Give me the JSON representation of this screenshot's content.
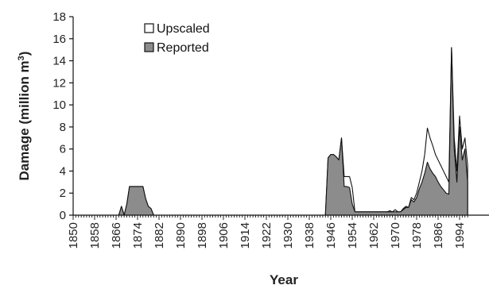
{
  "chart_data": {
    "type": "area",
    "xlabel": "Year",
    "ylabel": "Damage (million m3)",
    "ylabel_main": "Damage (million m",
    "ylabel_sup": "3",
    "ylabel_close": ")",
    "xlim": [
      1850,
      1997
    ],
    "ylim": [
      0,
      18
    ],
    "yticks": [
      0,
      2,
      4,
      6,
      8,
      10,
      12,
      14,
      16,
      18
    ],
    "xticks": [
      1850,
      1858,
      1866,
      1874,
      1882,
      1890,
      1898,
      1906,
      1914,
      1922,
      1930,
      1938,
      1946,
      1954,
      1962,
      1970,
      1978,
      1986,
      1994
    ],
    "legend_position": "top-left",
    "colors": {
      "upscaled_fill": "#ffffff",
      "reported_fill": "#8c8c8c",
      "line": "#111111"
    },
    "series": [
      {
        "name": "Upscaled",
        "x": [
          1850,
          1867,
          1868,
          1869,
          1870,
          1871,
          1872,
          1873,
          1874,
          1875,
          1876,
          1877,
          1878,
          1879,
          1880,
          1881,
          1882,
          1900,
          1940,
          1944,
          1945,
          1946,
          1947,
          1948,
          1949,
          1950,
          1951,
          1952,
          1953,
          1954,
          1955,
          1956,
          1957,
          1962,
          1965,
          1967,
          1968,
          1969,
          1970,
          1971,
          1972,
          1973,
          1974,
          1975,
          1976,
          1977,
          1978,
          1979,
          1980,
          1981,
          1982,
          1983,
          1984,
          1985,
          1986,
          1987,
          1988,
          1989,
          1990,
          1991,
          1992,
          1993,
          1994,
          1995,
          1996,
          1997
        ],
        "values": [
          0,
          0,
          0.8,
          0,
          1.0,
          2.6,
          2.6,
          2.6,
          2.6,
          2.6,
          2.6,
          1.5,
          0.8,
          0.6,
          0,
          0,
          0,
          0,
          0,
          0,
          5.2,
          5.5,
          5.5,
          5.3,
          5.0,
          7.0,
          3.5,
          3.5,
          3.5,
          2.5,
          0.3,
          0.3,
          0.3,
          0.3,
          0.3,
          0.3,
          0.4,
          0.3,
          0.5,
          0.3,
          0.3,
          0.6,
          0.8,
          0.7,
          1.6,
          1.4,
          2.0,
          3.0,
          4.0,
          5.5,
          7.9,
          7.0,
          6.3,
          5.5,
          5.0,
          4.5,
          4.0,
          3.5,
          3.0,
          15.2,
          7.0,
          4.0,
          9.0,
          6.0,
          7.0,
          4.5
        ]
      },
      {
        "name": "Reported",
        "x": [
          1850,
          1867,
          1868,
          1869,
          1870,
          1871,
          1872,
          1873,
          1874,
          1875,
          1876,
          1877,
          1878,
          1879,
          1880,
          1881,
          1882,
          1900,
          1940,
          1944,
          1945,
          1946,
          1947,
          1948,
          1949,
          1950,
          1951,
          1952,
          1953,
          1954,
          1955,
          1956,
          1957,
          1962,
          1965,
          1967,
          1968,
          1969,
          1970,
          1971,
          1972,
          1973,
          1974,
          1975,
          1976,
          1977,
          1978,
          1979,
          1980,
          1981,
          1982,
          1983,
          1984,
          1985,
          1986,
          1987,
          1988,
          1989,
          1990,
          1991,
          1992,
          1993,
          1994,
          1995,
          1996,
          1997
        ],
        "values": [
          0,
          0,
          0.8,
          0,
          1.0,
          2.6,
          2.6,
          2.6,
          2.6,
          2.6,
          2.6,
          1.5,
          0.8,
          0.6,
          0,
          0,
          0,
          0,
          0,
          0,
          5.2,
          5.5,
          5.5,
          5.3,
          5.0,
          7.0,
          2.6,
          2.6,
          2.5,
          1.0,
          0.3,
          0.3,
          0.3,
          0.3,
          0.3,
          0.3,
          0.3,
          0.3,
          0.3,
          0.3,
          0.3,
          0.5,
          0.7,
          0.7,
          1.4,
          1.2,
          1.6,
          2.4,
          3.0,
          3.8,
          4.8,
          4.2,
          3.8,
          3.5,
          3.0,
          2.6,
          2.3,
          2.0,
          1.9,
          15.2,
          6.0,
          3.0,
          8.0,
          5.0,
          6.0,
          3.0
        ]
      }
    ]
  }
}
